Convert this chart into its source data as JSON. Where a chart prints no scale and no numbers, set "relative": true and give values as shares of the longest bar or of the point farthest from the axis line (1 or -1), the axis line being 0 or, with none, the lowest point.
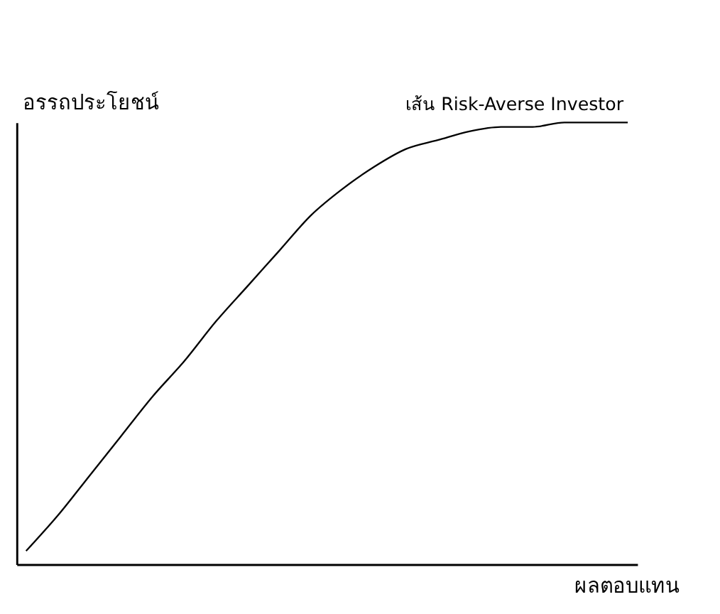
{
  "chart_data": {
    "type": "line",
    "relative": true,
    "xlabel": "ผลตอบแทน",
    "ylabel": "อรรถประโยชน์",
    "categories": [
      null,
      null,
      null,
      null,
      null,
      null,
      null,
      null,
      null,
      null,
      null,
      null,
      null,
      null,
      null,
      null,
      null,
      null,
      null,
      null
    ],
    "series": [
      {
        "color": "#000000",
        "values": [
          0.03,
          0.11,
          0.2,
          0.29,
          0.38,
          0.46,
          0.55,
          0.63,
          0.71,
          0.79,
          0.85,
          0.9,
          0.94,
          0.96,
          0.98,
          0.99,
          0.99,
          1.0,
          1.0,
          1.0
        ]
      }
    ],
    "annotations": [
      "เส้น Risk-Averse Investor"
    ],
    "grid": false,
    "marker": "none",
    "line_style": "solid"
  }
}
